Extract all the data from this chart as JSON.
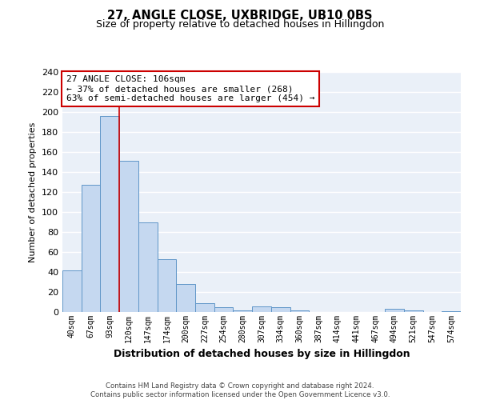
{
  "title_line1": "27, ANGLE CLOSE, UXBRIDGE, UB10 0BS",
  "title_line2": "Size of property relative to detached houses in Hillingdon",
  "xlabel": "Distribution of detached houses by size in Hillingdon",
  "ylabel": "Number of detached properties",
  "categories": [
    "40sqm",
    "67sqm",
    "93sqm",
    "120sqm",
    "147sqm",
    "174sqm",
    "200sqm",
    "227sqm",
    "254sqm",
    "280sqm",
    "307sqm",
    "334sqm",
    "360sqm",
    "387sqm",
    "414sqm",
    "441sqm",
    "467sqm",
    "494sqm",
    "521sqm",
    "547sqm",
    "574sqm"
  ],
  "values": [
    42,
    127,
    196,
    151,
    90,
    53,
    28,
    9,
    5,
    2,
    6,
    5,
    2,
    0,
    0,
    0,
    0,
    3,
    2,
    0,
    1
  ],
  "bar_color": "#c5d8f0",
  "bar_edge_color": "#6096c8",
  "bar_linewidth": 0.7,
  "vline_color": "#cc0000",
  "annotation_title": "27 ANGLE CLOSE: 106sqm",
  "annotation_line1": "← 37% of detached houses are smaller (268)",
  "annotation_line2": "63% of semi-detached houses are larger (454) →",
  "annotation_box_color": "#ffffff",
  "annotation_box_edge_color": "#cc0000",
  "ylim": [
    0,
    240
  ],
  "yticks": [
    0,
    20,
    40,
    60,
    80,
    100,
    120,
    140,
    160,
    180,
    200,
    220,
    240
  ],
  "background_color": "#eaf0f8",
  "grid_color": "#d0d8e4",
  "footer_line1": "Contains HM Land Registry data © Crown copyright and database right 2024.",
  "footer_line2": "Contains public sector information licensed under the Open Government Licence v3.0."
}
